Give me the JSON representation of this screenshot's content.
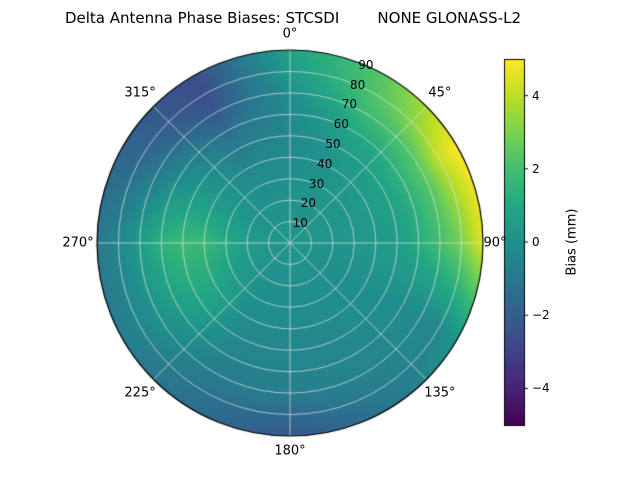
{
  "title": {
    "text": "Delta Antenna Phase Biases: STCSDI        NONE GLONASS-L2"
  },
  "colorbar": {
    "label": "Bias (mm)",
    "vmin": -5,
    "vmax": 5,
    "ticks": [
      {
        "value": 4,
        "label": "4"
      },
      {
        "value": 2,
        "label": "2"
      },
      {
        "value": 0,
        "label": "0"
      },
      {
        "value": -2,
        "label": "−2"
      },
      {
        "value": -4,
        "label": "−4"
      }
    ]
  },
  "polar": {
    "rmax": 90,
    "radial_label_angle_deg": 22.5,
    "angle_labels": [
      {
        "deg": 0,
        "label": "0°"
      },
      {
        "deg": 45,
        "label": "45°"
      },
      {
        "deg": 90,
        "label": "90°"
      },
      {
        "deg": 135,
        "label": "135°"
      },
      {
        "deg": 180,
        "label": "180°"
      },
      {
        "deg": 225,
        "label": "225°"
      },
      {
        "deg": 270,
        "label": "270°"
      },
      {
        "deg": 315,
        "label": "315°"
      }
    ],
    "radial_ticks": [
      {
        "r": 10,
        "label": "10"
      },
      {
        "r": 20,
        "label": "20"
      },
      {
        "r": 30,
        "label": "30"
      },
      {
        "r": 40,
        "label": "40"
      },
      {
        "r": 50,
        "label": "50"
      },
      {
        "r": 60,
        "label": "60"
      },
      {
        "r": 70,
        "label": "70"
      },
      {
        "r": 80,
        "label": "80"
      },
      {
        "r": 90,
        "label": "90"
      }
    ]
  },
  "chart_data": {
    "type": "heatmap",
    "projection": "polar",
    "title": "Delta Antenna Phase Biases: STCSDI        NONE GLONASS-L2",
    "colormap": "viridis",
    "colorbar_label": "Bias (mm)",
    "vmin": -5,
    "vmax": 5,
    "azimuth_deg": [
      0,
      30,
      60,
      90,
      120,
      150,
      180,
      210,
      240,
      270,
      300,
      330
    ],
    "zenith_deg": [
      0,
      10,
      20,
      30,
      40,
      50,
      60,
      70,
      80,
      90
    ],
    "bias_mm": [
      [
        0.2,
        0.2,
        0.1,
        0.0,
        -0.2,
        -0.3,
        -0.3,
        0.0,
        0.5,
        0.8
      ],
      [
        0.2,
        0.2,
        0.2,
        0.2,
        0.2,
        0.5,
        1.0,
        1.8,
        2.2,
        2.5
      ],
      [
        0.2,
        0.2,
        0.2,
        0.3,
        0.5,
        0.8,
        1.5,
        2.5,
        4.2,
        5.0
      ],
      [
        0.2,
        0.2,
        0.2,
        0.3,
        0.4,
        0.6,
        1.2,
        2.0,
        3.0,
        4.6
      ],
      [
        0.2,
        0.1,
        0.0,
        0.0,
        0.0,
        0.0,
        -0.2,
        -0.3,
        -0.3,
        0.2
      ],
      [
        0.2,
        0.1,
        0.0,
        0.0,
        -0.2,
        -0.3,
        -0.4,
        -0.5,
        -0.8,
        -1.2
      ],
      [
        0.2,
        0.1,
        0.0,
        -0.1,
        -0.3,
        -0.4,
        -0.5,
        -0.8,
        -1.6,
        -2.2
      ],
      [
        0.2,
        0.1,
        0.0,
        0.0,
        -0.2,
        -0.3,
        -0.5,
        -0.8,
        -1.2,
        -1.4
      ],
      [
        0.2,
        0.2,
        0.3,
        0.6,
        1.0,
        1.0,
        0.6,
        0.1,
        -0.4,
        -0.8
      ],
      [
        0.2,
        0.3,
        0.6,
        1.2,
        1.7,
        1.8,
        1.4,
        0.5,
        -0.4,
        -1.0
      ],
      [
        0.2,
        0.2,
        0.2,
        0.3,
        0.4,
        0.3,
        -0.2,
        -1.0,
        -1.6,
        -1.8
      ],
      [
        0.2,
        0.2,
        0.1,
        -0.1,
        -0.4,
        -0.8,
        -1.4,
        -2.2,
        -2.6,
        -2.6
      ]
    ]
  }
}
